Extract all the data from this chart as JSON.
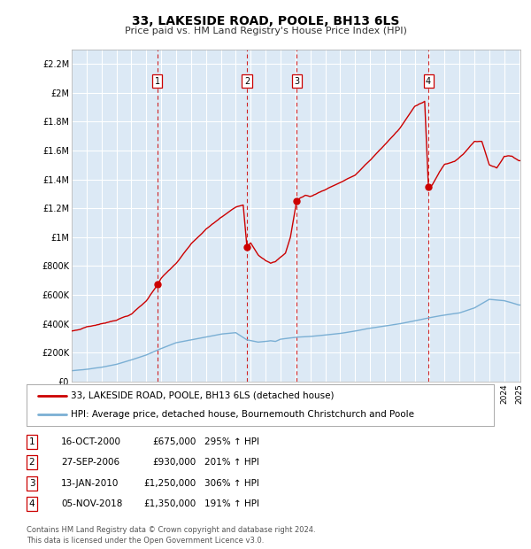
{
  "title": "33, LAKESIDE ROAD, POOLE, BH13 6LS",
  "subtitle": "Price paid vs. HM Land Registry's House Price Index (HPI)",
  "plot_bg_color": "#dce9f5",
  "red_line_color": "#cc0000",
  "blue_line_color": "#7aafd4",
  "grid_color": "#ffffff",
  "sale_dates_num": [
    69,
    141,
    181,
    287
  ],
  "sale_prices": [
    675000,
    930000,
    1250000,
    1350000
  ],
  "sale_labels": [
    "1",
    "2",
    "3",
    "4"
  ],
  "table_data": [
    [
      "1",
      "16-OCT-2000",
      "£675,000",
      "295% ↑ HPI"
    ],
    [
      "2",
      "27-SEP-2006",
      "£930,000",
      "201% ↑ HPI"
    ],
    [
      "3",
      "13-JAN-2010",
      "£1,250,000",
      "306% ↑ HPI"
    ],
    [
      "4",
      "05-NOV-2018",
      "£1,350,000",
      "191% ↑ HPI"
    ]
  ],
  "legend_entries": [
    "33, LAKESIDE ROAD, POOLE, BH13 6LS (detached house)",
    "HPI: Average price, detached house, Bournemouth Christchurch and Poole"
  ],
  "footer": "Contains HM Land Registry data © Crown copyright and database right 2024.\nThis data is licensed under the Open Government Licence v3.0.",
  "ylim": [
    0,
    2300000
  ],
  "yticks": [
    0,
    200000,
    400000,
    600000,
    800000,
    1000000,
    1200000,
    1400000,
    1600000,
    1800000,
    2000000,
    2200000
  ],
  "ytick_labels": [
    "£0",
    "£200K",
    "£400K",
    "£600K",
    "£800K",
    "£1M",
    "£1.2M",
    "£1.4M",
    "£1.6M",
    "£1.8M",
    "£2M",
    "£2.2M"
  ],
  "red_key_x": [
    0,
    6,
    12,
    24,
    36,
    48,
    60,
    69,
    72,
    84,
    96,
    108,
    120,
    132,
    138,
    141,
    144,
    150,
    156,
    160,
    164,
    168,
    172,
    176,
    180,
    181,
    184,
    188,
    192,
    204,
    216,
    228,
    240,
    252,
    264,
    276,
    280,
    284,
    287,
    290,
    296,
    300,
    308,
    316,
    324,
    330,
    336,
    342,
    348,
    354,
    360
  ],
  "red_key_y": [
    350000,
    360000,
    380000,
    400000,
    430000,
    470000,
    560000,
    675000,
    720000,
    820000,
    950000,
    1050000,
    1130000,
    1200000,
    1220000,
    930000,
    960000,
    880000,
    840000,
    820000,
    830000,
    860000,
    890000,
    1000000,
    1200000,
    1250000,
    1270000,
    1290000,
    1280000,
    1330000,
    1380000,
    1430000,
    1530000,
    1640000,
    1750000,
    1900000,
    1920000,
    1940000,
    1350000,
    1360000,
    1450000,
    1500000,
    1520000,
    1580000,
    1660000,
    1660000,
    1500000,
    1480000,
    1560000,
    1560000,
    1530000
  ],
  "blue_key_x": [
    0,
    12,
    24,
    36,
    48,
    60,
    69,
    84,
    108,
    120,
    132,
    141,
    150,
    156,
    160,
    164,
    168,
    181,
    192,
    204,
    216,
    228,
    240,
    252,
    264,
    276,
    287,
    300,
    312,
    324,
    336,
    348,
    360
  ],
  "blue_key_y": [
    75000,
    85000,
    100000,
    120000,
    150000,
    185000,
    220000,
    270000,
    310000,
    330000,
    340000,
    290000,
    275000,
    280000,
    285000,
    280000,
    295000,
    310000,
    315000,
    325000,
    335000,
    350000,
    370000,
    385000,
    400000,
    420000,
    440000,
    460000,
    475000,
    510000,
    570000,
    560000,
    530000
  ]
}
